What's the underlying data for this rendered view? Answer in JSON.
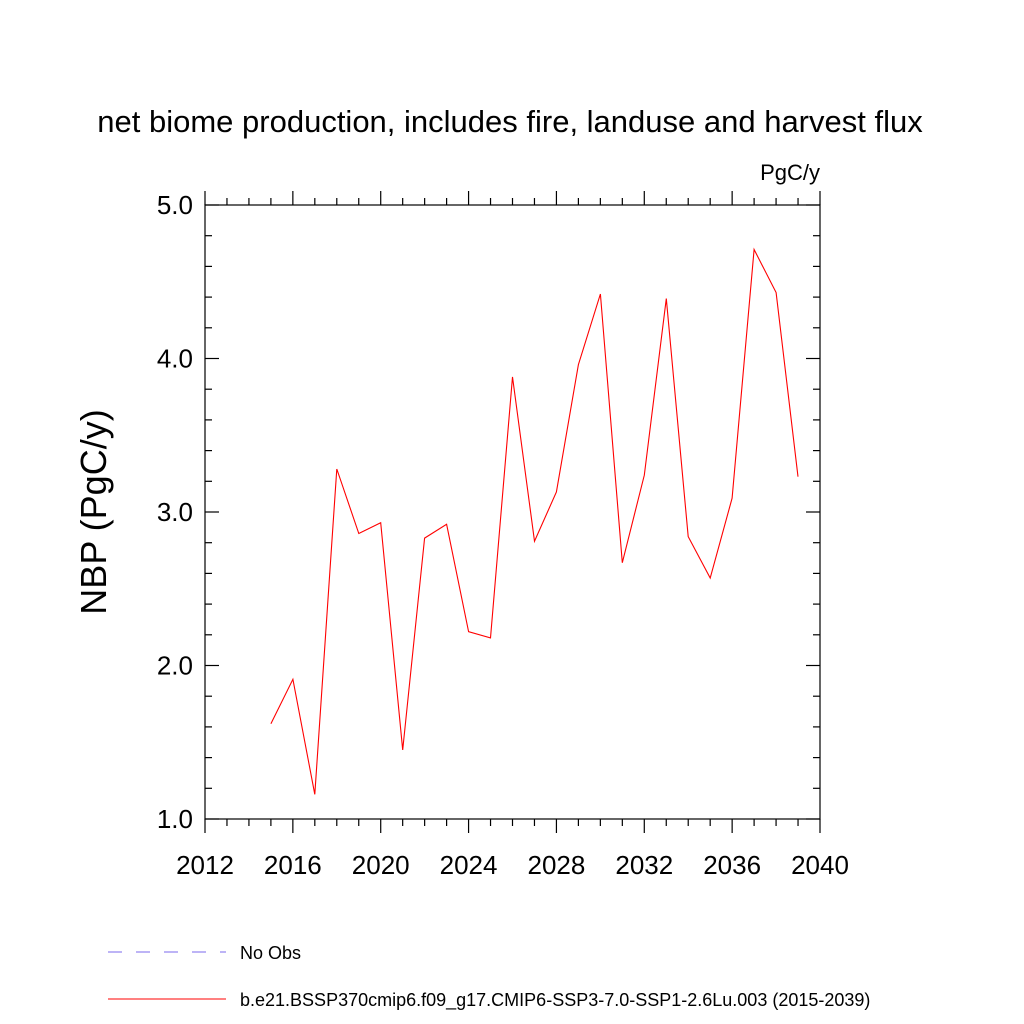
{
  "chart_data": {
    "type": "line",
    "title": "net biome production, includes fire, landuse and harvest flux",
    "units": "PgC/y",
    "xlabel": "",
    "ylabel": "NBP  (PgC/y)",
    "xlim": [
      2012,
      2040
    ],
    "ylim": [
      1.0,
      5.0
    ],
    "x_ticks": [
      2012,
      2016,
      2020,
      2024,
      2028,
      2032,
      2036,
      2040
    ],
    "x_tick_labels": [
      "2012",
      "2016",
      "2020",
      "2024",
      "2028",
      "2032",
      "2036",
      "2040"
    ],
    "y_ticks": [
      1.0,
      2.0,
      3.0,
      4.0,
      5.0
    ],
    "y_tick_labels": [
      "1.0",
      "2.0",
      "3.0",
      "4.0",
      "5.0"
    ],
    "grid": false,
    "legend_position": "bottom",
    "series": [
      {
        "name": "b.e21.BSSP370cmip6.f09_g17.CMIP6-SSP3-7.0-SSP1-2.6Lu.003 (2015-2039)",
        "color": "#ff0000",
        "style": "solid",
        "x": [
          2015,
          2016,
          2017,
          2018,
          2019,
          2020,
          2021,
          2022,
          2023,
          2024,
          2025,
          2026,
          2027,
          2028,
          2029,
          2030,
          2031,
          2032,
          2033,
          2034,
          2035,
          2036,
          2037,
          2038,
          2039
        ],
        "y": [
          1.62,
          1.91,
          1.16,
          3.28,
          2.86,
          2.93,
          1.45,
          2.83,
          2.92,
          2.22,
          2.18,
          3.88,
          2.81,
          3.13,
          3.96,
          4.42,
          2.67,
          3.24,
          4.39,
          2.84,
          2.57,
          3.09,
          4.71,
          4.43,
          3.23
        ]
      }
    ],
    "legend": [
      {
        "label": "No Obs",
        "color": "#7b68ee",
        "style": "dashed"
      },
      {
        "label": "b.e21.BSSP370cmip6.f09_g17.CMIP6-SSP3-7.0-SSP1-2.6Lu.003 (2015-2039)",
        "color": "#ff0000",
        "style": "solid"
      }
    ]
  }
}
